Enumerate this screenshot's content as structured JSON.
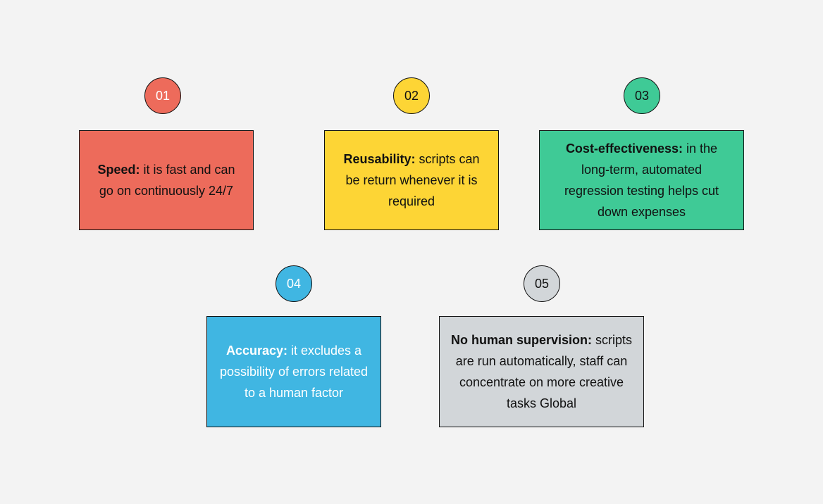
{
  "colors": {
    "background": "#f3f3f3",
    "red": "#ed6b5b",
    "yellow": "#fdd535",
    "green": "#3fca96",
    "blue": "#40b6e2",
    "gray": "#d2d6d9"
  },
  "items": [
    {
      "number": "01",
      "title": "Speed:",
      "text": "it is fast and can go on continuously 24/7"
    },
    {
      "number": "02",
      "title": "Reusability:",
      "text": "scripts can be return whenever it is required"
    },
    {
      "number": "03",
      "title": "Cost-effectiveness:",
      "text": "in the long-term, automated regression testing helps cut down expenses"
    },
    {
      "number": "04",
      "title": "Accuracy:",
      "text": "it excludes a possibility of errors related to a human factor"
    },
    {
      "number": "05",
      "title": "No human supervision:",
      "text": "scripts are run automatically, staff can concentrate on more creative tasks Global"
    }
  ]
}
